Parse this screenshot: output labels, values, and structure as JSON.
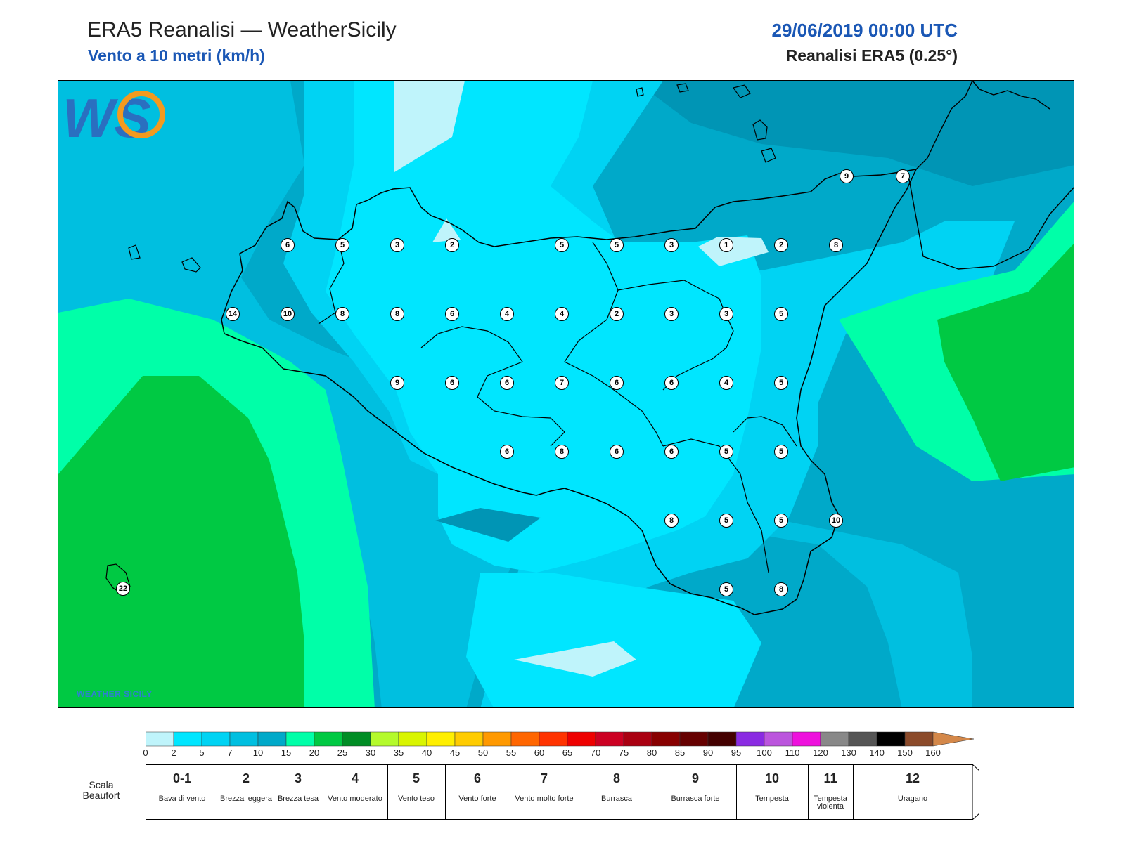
{
  "header": {
    "title": "ERA5 Reanalisi — WeatherSicily",
    "subtitle": "Vento a 10 metri (km/h)",
    "datetime": "29/06/2019 00:00 UTC",
    "model": "Reanalisi ERA5 (0.25°)"
  },
  "logo": {
    "text": "WEATHER SICILY",
    "letters": "WS"
  },
  "stations": [
    {
      "v": "9"
    },
    {
      "v": "7"
    },
    {
      "v": "6"
    },
    {
      "v": "5"
    },
    {
      "v": "3"
    },
    {
      "v": "2"
    },
    {
      "v": "5"
    },
    {
      "v": "5"
    },
    {
      "v": "3"
    },
    {
      "v": "1"
    },
    {
      "v": "2"
    },
    {
      "v": "8"
    },
    {
      "v": "14"
    },
    {
      "v": "10"
    },
    {
      "v": "8"
    },
    {
      "v": "8"
    },
    {
      "v": "6"
    },
    {
      "v": "4"
    },
    {
      "v": "4"
    },
    {
      "v": "2"
    },
    {
      "v": "3"
    },
    {
      "v": "3"
    },
    {
      "v": "5"
    },
    {
      "v": "9"
    },
    {
      "v": "6"
    },
    {
      "v": "6"
    },
    {
      "v": "7"
    },
    {
      "v": "6"
    },
    {
      "v": "6"
    },
    {
      "v": "4"
    },
    {
      "v": "5"
    },
    {
      "v": "6"
    },
    {
      "v": "8"
    },
    {
      "v": "6"
    },
    {
      "v": "6"
    },
    {
      "v": "5"
    },
    {
      "v": "5"
    },
    {
      "v": "8"
    },
    {
      "v": "5"
    },
    {
      "v": "5"
    },
    {
      "v": "10"
    },
    {
      "v": "5"
    },
    {
      "v": "8"
    },
    {
      "v": "22"
    }
  ],
  "colorscale": {
    "ticks": [
      "0",
      "2",
      "5",
      "7",
      "10",
      "15",
      "20",
      "25",
      "30",
      "35",
      "40",
      "45",
      "50",
      "55",
      "60",
      "65",
      "70",
      "75",
      "80",
      "85",
      "90",
      "95",
      "100",
      "110",
      "120",
      "130",
      "140",
      "150",
      "160"
    ],
    "colors": [
      "#bff4fb",
      "#00e6ff",
      "#00d3f3",
      "#00bfe0",
      "#00a9c9",
      "#00ffa8",
      "#00c943",
      "#008d25",
      "#b4fa2c",
      "#d9f500",
      "#ffef00",
      "#ffcc00",
      "#ff9900",
      "#ff6600",
      "#ff3300",
      "#ee0000",
      "#cc0022",
      "#aa0011",
      "#880000",
      "#660000",
      "#440000",
      "#8a2be2",
      "#bb55dd",
      "#ee11dd",
      "#888888",
      "#555555",
      "#000000",
      "#8b4a2a",
      "#d4884a"
    ]
  },
  "beaufort": {
    "title": "Scala Beaufort",
    "levels": [
      {
        "num": "0-1",
        "desc": "Bava di vento"
      },
      {
        "num": "2",
        "desc": "Brezza leggera"
      },
      {
        "num": "3",
        "desc": "Brezza tesa"
      },
      {
        "num": "4",
        "desc": "Vento moderato"
      },
      {
        "num": "5",
        "desc": "Vento teso"
      },
      {
        "num": "6",
        "desc": "Vento forte"
      },
      {
        "num": "7",
        "desc": "Vento molto forte"
      },
      {
        "num": "8",
        "desc": "Burrasca"
      },
      {
        "num": "9",
        "desc": "Burrasca forte"
      },
      {
        "num": "10",
        "desc": "Tempesta"
      },
      {
        "num": "11",
        "desc": "Tempesta violenta"
      },
      {
        "num": "12",
        "desc": "Uragano"
      }
    ]
  }
}
